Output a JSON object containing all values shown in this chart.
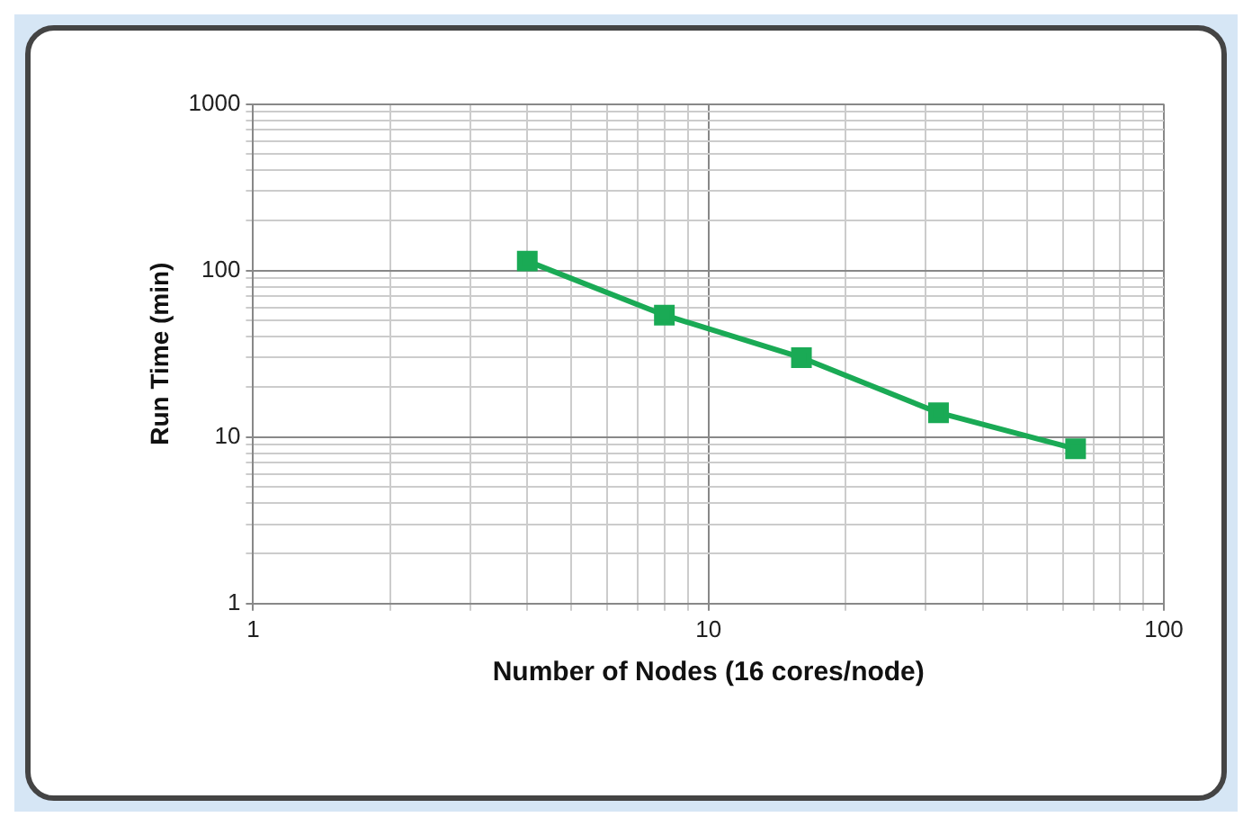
{
  "chart_data": {
    "type": "line",
    "xlabel": "Number of Nodes (16 cores/node)",
    "ylabel": "Run Time (min)",
    "x": [
      4,
      8,
      16,
      32,
      64
    ],
    "series": [
      {
        "color": "#1aaa55",
        "values": [
          114,
          54,
          30,
          14,
          8.5
        ]
      }
    ],
    "log": "xy",
    "xlim": [
      1,
      100
    ],
    "ylim": [
      1,
      1000
    ],
    "xticks": [
      1,
      {
        "value": 2,
        "label": null
      },
      {
        "value": 3,
        "label": null
      },
      {
        "value": 4,
        "label": null
      },
      {
        "value": 5,
        "label": null
      },
      {
        "value": 6,
        "label": null
      },
      {
        "value": 7,
        "label": null
      },
      {
        "value": 8,
        "label": null
      },
      {
        "value": 9,
        "label": null
      },
      10,
      {
        "value": 20,
        "label": null
      },
      {
        "value": 30,
        "label": null
      },
      {
        "value": 40,
        "label": null
      },
      {
        "value": 50,
        "label": null
      },
      {
        "value": 60,
        "label": null
      },
      {
        "value": 70,
        "label": null
      },
      {
        "value": 80,
        "label": null
      },
      {
        "value": 90,
        "label": null
      },
      100
    ],
    "yticks": [
      1,
      {
        "value": 2,
        "label": null
      },
      {
        "value": 3,
        "label": null
      },
      {
        "value": 4,
        "label": null
      },
      {
        "value": 5,
        "label": null
      },
      {
        "value": 6,
        "label": null
      },
      {
        "value": 7,
        "label": null
      },
      {
        "value": 8,
        "label": null
      },
      {
        "value": 9,
        "label": null
      },
      10,
      {
        "value": 20,
        "label": null
      },
      {
        "value": 30,
        "label": null
      },
      {
        "value": 40,
        "label": null
      },
      {
        "value": 50,
        "label": null
      },
      {
        "value": 60,
        "label": null
      },
      {
        "value": 70,
        "label": null
      },
      {
        "value": 80,
        "label": null
      },
      {
        "value": 90,
        "label": null
      },
      100,
      {
        "value": 200,
        "label": null
      },
      {
        "value": 300,
        "label": null
      },
      {
        "value": 400,
        "label": null
      },
      {
        "value": 500,
        "label": null
      },
      {
        "value": 600,
        "label": null
      },
      {
        "value": 700,
        "label": null
      },
      {
        "value": 800,
        "label": null
      },
      {
        "value": 900,
        "label": null
      },
      1000
    ],
    "grid": true,
    "legend": false,
    "marker": "square",
    "line_style": "solid"
  }
}
